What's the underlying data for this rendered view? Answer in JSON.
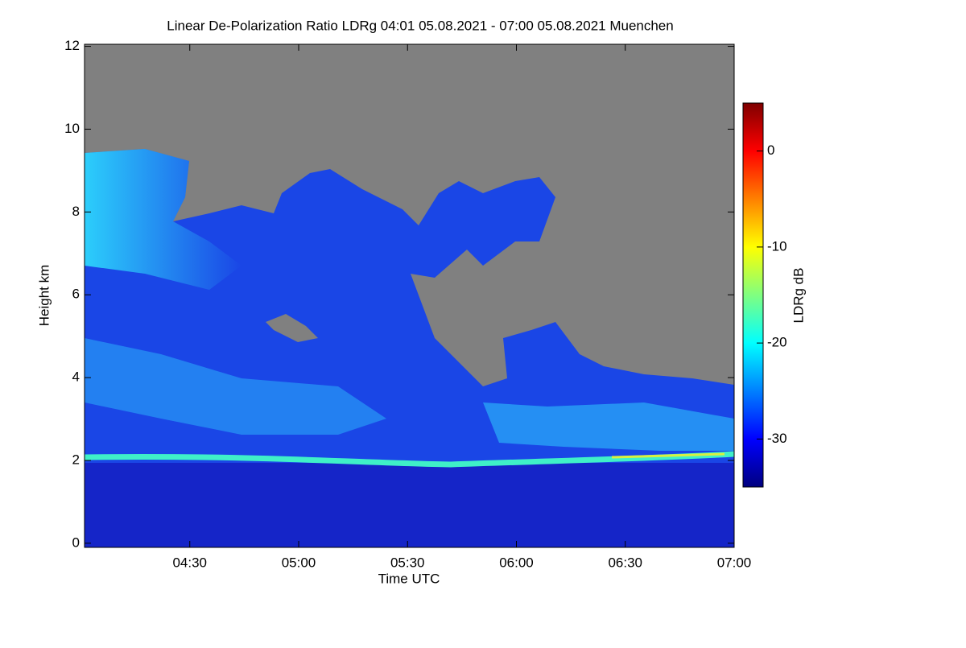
{
  "chart_data": {
    "type": "heatmap",
    "title": "Linear De-Polarization Ratio LDRg   04:01 05.08.2021 - 07:00 05.08.2021 Muenchen",
    "xlabel": "Time UTC",
    "ylabel": "Height km",
    "xlim": [
      "04:01",
      "07:00"
    ],
    "xticks": [
      "04:30",
      "05:00",
      "05:30",
      "06:00",
      "06:30",
      "07:00"
    ],
    "ylim": [
      -0.1,
      12.05
    ],
    "yticks": [
      0,
      2,
      4,
      6,
      8,
      10,
      12
    ],
    "colorbar": {
      "label": "LDRg dB",
      "clim": [
        -35,
        5
      ],
      "ticks": [
        -30,
        -20,
        -10,
        0
      ],
      "colormap": [
        "#00007f",
        "#0000ff",
        "#0080ff",
        "#00ffff",
        "#80ff80",
        "#ffff00",
        "#ff8000",
        "#ff0000",
        "#7f0000"
      ]
    },
    "missing_color": "#808080"
  }
}
